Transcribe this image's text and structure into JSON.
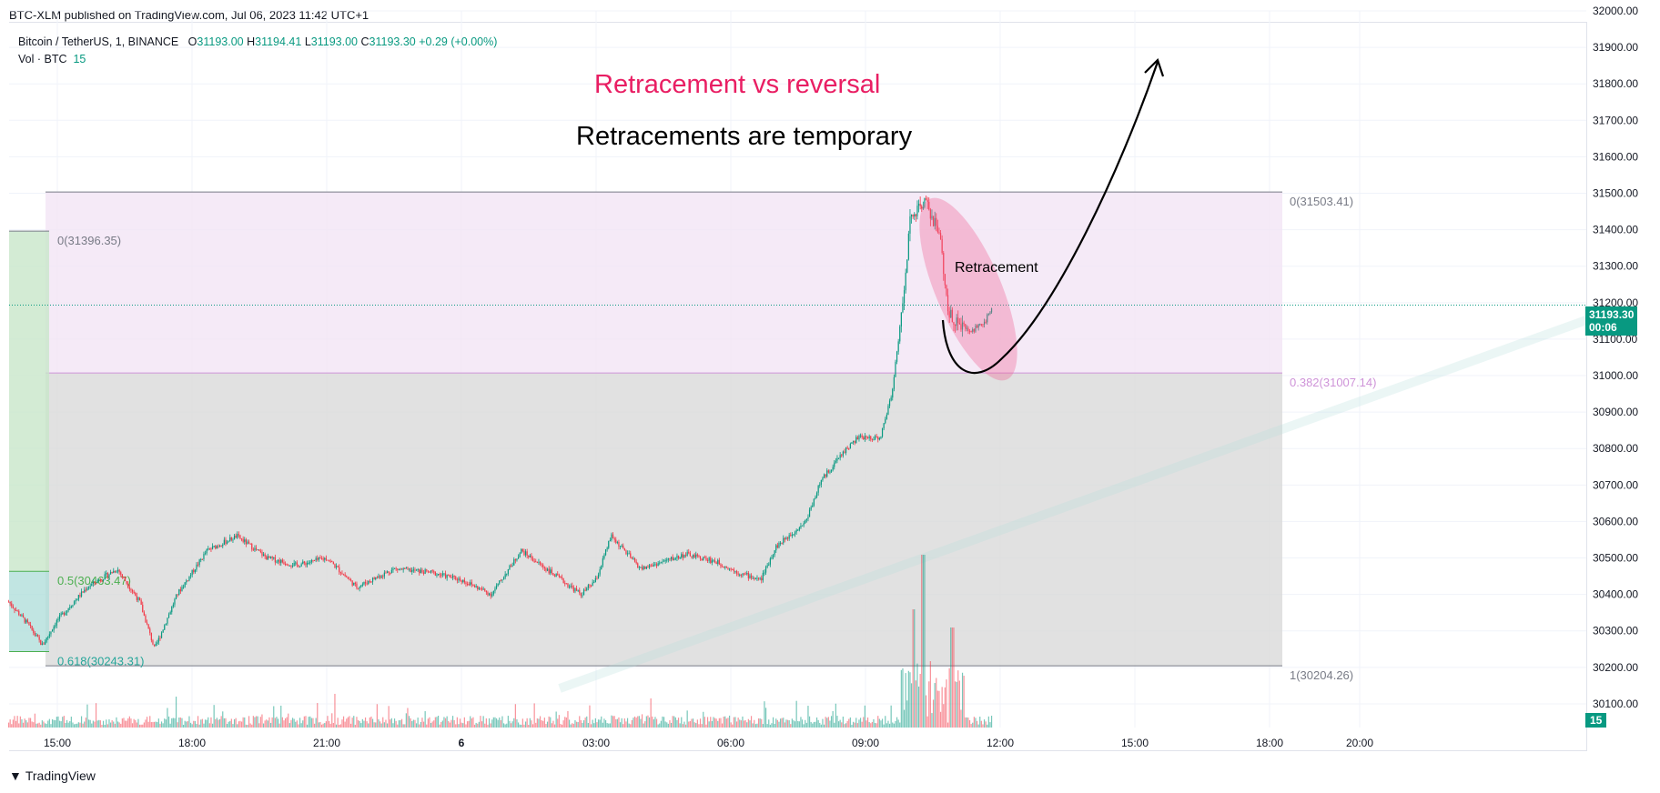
{
  "header": {
    "published_text": "BTC-XLM published on TradingView.com, Jul 06, 2023 11:42 UTC+1"
  },
  "legend": {
    "symbol": "Bitcoin / TetherUS, 1, BINANCE",
    "o_label": "O",
    "o_value": "31193.00",
    "h_label": "H",
    "h_value": "31194.41",
    "l_label": "L",
    "l_value": "31193.00",
    "c_label": "C",
    "c_value": "31193.30",
    "change": "+0.29 (+0.00%)",
    "vol_label": "Vol · BTC",
    "vol_value": "15"
  },
  "annotations": {
    "title": "Retracement vs reversal",
    "subtitle": "Retracements are temporary",
    "retracement_label": "Retracement"
  },
  "current_price": {
    "price": "31193.30",
    "countdown": "00:06",
    "volume": "15"
  },
  "footer": {
    "brand": "TradingView"
  },
  "colors": {
    "up": "#089981",
    "down": "#f23645",
    "title": "#e91e63",
    "fib_pink": "#f3e5f5",
    "fib_gray": "#d9d9d9",
    "highlight": "#f06292",
    "green_zone": "#c8e6c9"
  },
  "chart_data": {
    "type": "candlestick",
    "x_ticks": [
      "15:00",
      "18:00",
      "21:00",
      "6",
      "03:00",
      "06:00",
      "09:00",
      "12:00",
      "15:00",
      "18:00",
      "20:00"
    ],
    "y_ticks": [
      30100,
      30200,
      30300,
      30400,
      30500,
      30600,
      30700,
      30800,
      30900,
      31000,
      31100,
      31200,
      31300,
      31400,
      31500,
      31600,
      31700,
      31800,
      31900,
      32000
    ],
    "y_tick_labels": [
      "30100.00",
      "30200.00",
      "30300.00",
      "30400.00",
      "30500.00",
      "30600.00",
      "30700.00",
      "30800.00",
      "30900.00",
      "31000.00",
      "31100.00",
      "31200.00",
      "31300.00",
      "31400.00",
      "31500.00",
      "31600.00",
      "31700.00",
      "31800.00",
      "31900.00",
      "32000.00"
    ],
    "ylim": [
      30050,
      32000
    ],
    "price_path": [
      [
        "13:55",
        30380
      ],
      [
        "14:20",
        30320
      ],
      [
        "14:40",
        30260
      ],
      [
        "15:00",
        30330
      ],
      [
        "15:40",
        30420
      ],
      [
        "16:20",
        30470
      ],
      [
        "16:50",
        30380
      ],
      [
        "17:10",
        30250
      ],
      [
        "17:40",
        30400
      ],
      [
        "18:20",
        30520
      ],
      [
        "19:00",
        30560
      ],
      [
        "19:40",
        30500
      ],
      [
        "20:20",
        30480
      ],
      [
        "21:00",
        30500
      ],
      [
        "21:40",
        30420
      ],
      [
        "22:30",
        30470
      ],
      [
        "23:20",
        30460
      ],
      [
        "00:00",
        30440
      ],
      [
        "00:40",
        30400
      ],
      [
        "01:20",
        30520
      ],
      [
        "02:00",
        30460
      ],
      [
        "02:40",
        30400
      ],
      [
        "03:00",
        30440
      ],
      [
        "03:20",
        30560
      ],
      [
        "04:00",
        30470
      ],
      [
        "05:00",
        30510
      ],
      [
        "05:40",
        30490
      ],
      [
        "06:10",
        30460
      ],
      [
        "06:40",
        30440
      ],
      [
        "07:00",
        30530
      ],
      [
        "07:40",
        30600
      ],
      [
        "08:00",
        30710
      ],
      [
        "08:30",
        30790
      ],
      [
        "08:50",
        30830
      ],
      [
        "09:20",
        30830
      ],
      [
        "09:35",
        30950
      ],
      [
        "09:50",
        31200
      ],
      [
        "10:00",
        31430
      ],
      [
        "10:20",
        31480
      ],
      [
        "10:40",
        31380
      ],
      [
        "10:50",
        31170
      ],
      [
        "11:20",
        31120
      ],
      [
        "11:40",
        31150
      ],
      [
        "11:50",
        31193
      ]
    ],
    "fibonacci_main": {
      "levels": [
        {
          "ratio": "0",
          "price": 31503.41,
          "label": "0(31503.41)"
        },
        {
          "ratio": "0.382",
          "price": 31007.14,
          "label": "0.382(31007.14)"
        },
        {
          "ratio": "1",
          "price": 30204.26,
          "label": "1(30204.26)"
        }
      ]
    },
    "fibonacci_left": {
      "levels": [
        {
          "ratio": "0",
          "price": 31396.35,
          "label": "0(31396.35)"
        },
        {
          "ratio": "0.5",
          "price": 30463.47,
          "label": "0.5(30463.47)"
        },
        {
          "ratio": "0.618",
          "price": 30243.31,
          "label": "0.618(30243.31)"
        }
      ]
    }
  }
}
